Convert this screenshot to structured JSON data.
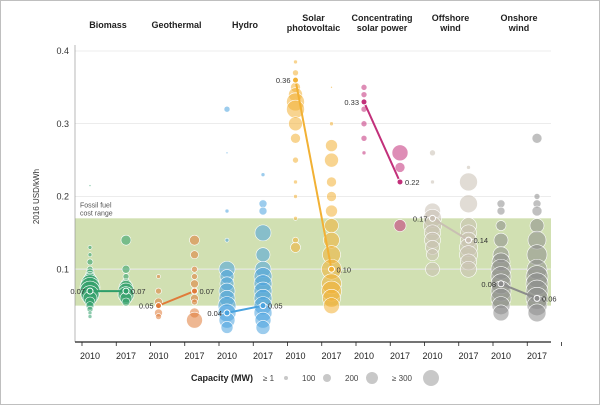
{
  "chart_data": {
    "type": "scatter",
    "ylabel": "2016 USD/kWh",
    "ylim": [
      0,
      0.4
    ],
    "yticks": [
      0.1,
      0.2,
      0.3,
      0.4
    ],
    "grid": true,
    "band": {
      "label": "Fossil fuel cost range",
      "range": [
        0.05,
        0.17
      ],
      "color": "#c9dba4"
    },
    "technologies": [
      {
        "name": "Biomass",
        "color": "#2e9e6a",
        "avg_2010": 0.07,
        "avg_2017": 0.07,
        "points_2010": [
          [
            0.215,
            1
          ],
          [
            0.13,
            2
          ],
          [
            0.12,
            2
          ],
          [
            0.11,
            3
          ],
          [
            0.1,
            3
          ],
          [
            0.095,
            4
          ],
          [
            0.09,
            5
          ],
          [
            0.085,
            7
          ],
          [
            0.08,
            9
          ],
          [
            0.075,
            10
          ],
          [
            0.07,
            10
          ],
          [
            0.065,
            9
          ],
          [
            0.06,
            7
          ],
          [
            0.055,
            5
          ],
          [
            0.05,
            4
          ],
          [
            0.045,
            3
          ],
          [
            0.04,
            2
          ],
          [
            0.035,
            2
          ]
        ],
        "points_2017": [
          [
            0.14,
            5
          ],
          [
            0.1,
            4
          ],
          [
            0.09,
            3
          ],
          [
            0.08,
            5
          ],
          [
            0.075,
            7
          ],
          [
            0.07,
            8
          ],
          [
            0.065,
            8
          ],
          [
            0.06,
            6
          ],
          [
            0.055,
            4
          ]
        ]
      },
      {
        "name": "Geothermal",
        "color": "#e07b39",
        "avg_2010": 0.05,
        "avg_2017": 0.07,
        "points_2010": [
          [
            0.09,
            2
          ],
          [
            0.07,
            3
          ],
          [
            0.055,
            4
          ],
          [
            0.05,
            3
          ],
          [
            0.04,
            4
          ],
          [
            0.035,
            3
          ]
        ],
        "points_2017": [
          [
            0.14,
            5
          ],
          [
            0.12,
            4
          ],
          [
            0.1,
            3
          ],
          [
            0.09,
            3
          ],
          [
            0.08,
            4
          ],
          [
            0.07,
            3
          ],
          [
            0.06,
            4
          ],
          [
            0.055,
            3
          ],
          [
            0.04,
            5
          ],
          [
            0.03,
            8
          ]
        ]
      },
      {
        "name": "Hydro",
        "color": "#4aa3df",
        "avg_2010": 0.04,
        "avg_2017": 0.05,
        "points_2010": [
          [
            0.32,
            3
          ],
          [
            0.26,
            1
          ],
          [
            0.18,
            2
          ],
          [
            0.14,
            2
          ],
          [
            0.1,
            8
          ],
          [
            0.09,
            7
          ],
          [
            0.08,
            7
          ],
          [
            0.07,
            8
          ],
          [
            0.06,
            8
          ],
          [
            0.05,
            9
          ],
          [
            0.04,
            9
          ],
          [
            0.03,
            8
          ],
          [
            0.02,
            6
          ]
        ],
        "points_2017": [
          [
            0.23,
            2
          ],
          [
            0.19,
            4
          ],
          [
            0.18,
            4
          ],
          [
            0.15,
            8
          ],
          [
            0.12,
            7
          ],
          [
            0.1,
            8
          ],
          [
            0.09,
            9
          ],
          [
            0.08,
            9
          ],
          [
            0.07,
            9
          ],
          [
            0.06,
            9
          ],
          [
            0.05,
            9
          ],
          [
            0.04,
            9
          ],
          [
            0.03,
            8
          ],
          [
            0.02,
            7
          ]
        ]
      },
      {
        "name": "Solar photovoltaic",
        "color": "#f2b134",
        "avg_2010": 0.36,
        "avg_2017": 0.1,
        "points_2010": [
          [
            0.385,
            2
          ],
          [
            0.37,
            3
          ],
          [
            0.35,
            5
          ],
          [
            0.34,
            7
          ],
          [
            0.33,
            9
          ],
          [
            0.32,
            9
          ],
          [
            0.3,
            7
          ],
          [
            0.28,
            5
          ],
          [
            0.25,
            3
          ],
          [
            0.22,
            2
          ],
          [
            0.2,
            2
          ],
          [
            0.17,
            2
          ],
          [
            0.14,
            3
          ],
          [
            0.13,
            5
          ]
        ],
        "points_2017": [
          [
            0.35,
            1
          ],
          [
            0.3,
            2
          ],
          [
            0.27,
            6
          ],
          [
            0.25,
            7
          ],
          [
            0.22,
            5
          ],
          [
            0.2,
            5
          ],
          [
            0.18,
            6
          ],
          [
            0.16,
            7
          ],
          [
            0.14,
            8
          ],
          [
            0.12,
            9
          ],
          [
            0.1,
            10
          ],
          [
            0.08,
            10
          ],
          [
            0.07,
            10
          ],
          [
            0.06,
            9
          ],
          [
            0.05,
            8
          ]
        ]
      },
      {
        "name": "Concentrating solar power",
        "color": "#c2307a",
        "avg_2010": 0.33,
        "avg_2017": 0.22,
        "points_2010": [
          [
            0.35,
            3
          ],
          [
            0.34,
            3
          ],
          [
            0.32,
            3
          ],
          [
            0.3,
            3
          ],
          [
            0.28,
            3
          ],
          [
            0.26,
            2
          ]
        ],
        "points_2017": [
          [
            0.26,
            8
          ],
          [
            0.24,
            5
          ],
          [
            0.16,
            6
          ]
        ]
      },
      {
        "name": "Offshore wind",
        "color": "#c9bfb3",
        "avg_2010": 0.17,
        "avg_2017": 0.14,
        "points_2010": [
          [
            0.26,
            3
          ],
          [
            0.22,
            2
          ],
          [
            0.18,
            8
          ],
          [
            0.17,
            9
          ],
          [
            0.16,
            9
          ],
          [
            0.15,
            8
          ],
          [
            0.14,
            8
          ],
          [
            0.13,
            7
          ],
          [
            0.12,
            6
          ],
          [
            0.1,
            7
          ]
        ],
        "points_2017": [
          [
            0.24,
            2
          ],
          [
            0.22,
            9
          ],
          [
            0.19,
            9
          ],
          [
            0.16,
            8
          ],
          [
            0.15,
            8
          ],
          [
            0.14,
            8
          ],
          [
            0.13,
            9
          ],
          [
            0.12,
            9
          ],
          [
            0.11,
            8
          ],
          [
            0.1,
            8
          ]
        ]
      },
      {
        "name": "Onshore wind",
        "color": "#8c8c8c",
        "avg_2010": 0.08,
        "avg_2017": 0.06,
        "points_2010": [
          [
            0.19,
            4
          ],
          [
            0.18,
            4
          ],
          [
            0.16,
            5
          ],
          [
            0.14,
            7
          ],
          [
            0.12,
            8
          ],
          [
            0.11,
            9
          ],
          [
            0.1,
            10
          ],
          [
            0.09,
            10
          ],
          [
            0.08,
            10
          ],
          [
            0.07,
            10
          ],
          [
            0.06,
            10
          ],
          [
            0.05,
            9
          ],
          [
            0.04,
            8
          ]
        ],
        "points_2017": [
          [
            0.28,
            5
          ],
          [
            0.2,
            3
          ],
          [
            0.19,
            4
          ],
          [
            0.18,
            5
          ],
          [
            0.16,
            7
          ],
          [
            0.14,
            9
          ],
          [
            0.12,
            10
          ],
          [
            0.1,
            10
          ],
          [
            0.09,
            11
          ],
          [
            0.08,
            11
          ],
          [
            0.07,
            11
          ],
          [
            0.06,
            11
          ],
          [
            0.05,
            10
          ],
          [
            0.04,
            9
          ]
        ]
      }
    ],
    "category_labels": [
      [
        "Biomass"
      ],
      [
        "Geothermal"
      ],
      [
        "Hydro"
      ],
      [
        "Solar",
        "photovoltaic"
      ],
      [
        "Concentrating",
        "solar power"
      ],
      [
        "Offshore",
        "wind"
      ],
      [
        "Onshore",
        "wind"
      ]
    ],
    "years": [
      "2010",
      "2017"
    ],
    "legend": {
      "title": "Capacity (MW)",
      "items": [
        {
          "label": "≥ 1",
          "size": 2
        },
        {
          "label": "100",
          "size": 4
        },
        {
          "label": "200",
          "size": 6
        },
        {
          "label": "≥ 300",
          "size": 8
        }
      ]
    }
  }
}
